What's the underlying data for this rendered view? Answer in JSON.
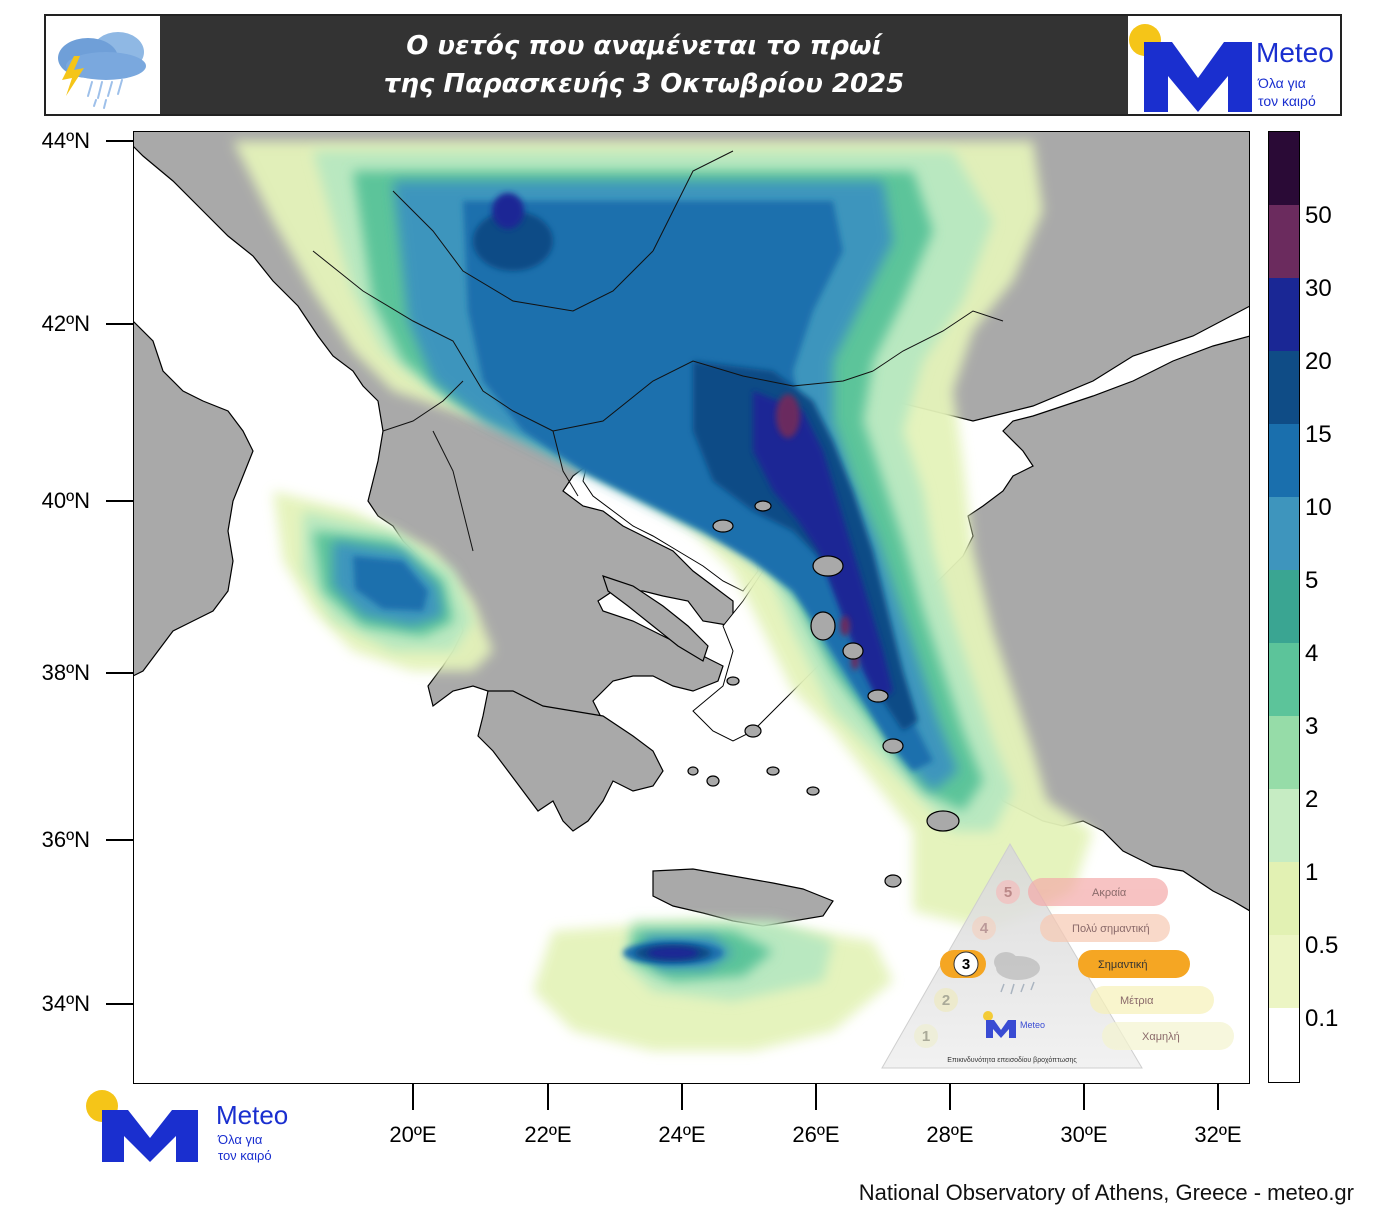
{
  "header": {
    "title_line1": "Ο υετός που αναμένεται το πρωί",
    "title_line2": "της Παρασκευής 3 Οκτωβρίου 2025",
    "left_icon": "storm-cloud-icon"
  },
  "logos": {
    "brand_name": "Meteo",
    "tagline_line1": "Όλα για",
    "tagline_line2": "τον καιρό"
  },
  "map": {
    "lat_labels": [
      "44ºN",
      "42ºN",
      "40ºN",
      "38ºN",
      "36ºN",
      "34ºN"
    ],
    "lon_labels": [
      "20ºE",
      "22ºE",
      "24ºE",
      "26ºE",
      "28ºE",
      "30ºE",
      "32ºE"
    ],
    "colors": {
      "land": "#a9a9a9",
      "sea": "#ffffff"
    }
  },
  "colorbar": {
    "labels": [
      "50",
      "30",
      "20",
      "15",
      "10",
      "5",
      "4",
      "3",
      "2",
      "1",
      "0.5",
      "0.1"
    ],
    "colors": [
      "#ffffff",
      "#ecf5c4",
      "#e2f1b3",
      "#c6ecc3",
      "#96dca8",
      "#5cc49a",
      "#3aa592",
      "#3e95bd",
      "#1a6fad",
      "#0f4c86",
      "#1a2795",
      "#6b2b5e",
      "#2a0a36"
    ]
  },
  "warning_scale": {
    "levels": [
      "5",
      "4",
      "3",
      "2",
      "1"
    ],
    "labels": [
      "Ακραία",
      "Πολύ σημαντική",
      "Σημαντική",
      "Μέτρια",
      "Χαμηλή"
    ],
    "active_level": "3",
    "caption": "Επικινδυνότητα επεισοδίου βροχόπτωσης",
    "colors": [
      "#f4a9a9",
      "#f7c9b3",
      "#f5a623",
      "#f7f1b8",
      "#f3f3cf"
    ]
  },
  "footer": {
    "credit": "National Observatory of Athens, Greece - meteo.gr"
  }
}
